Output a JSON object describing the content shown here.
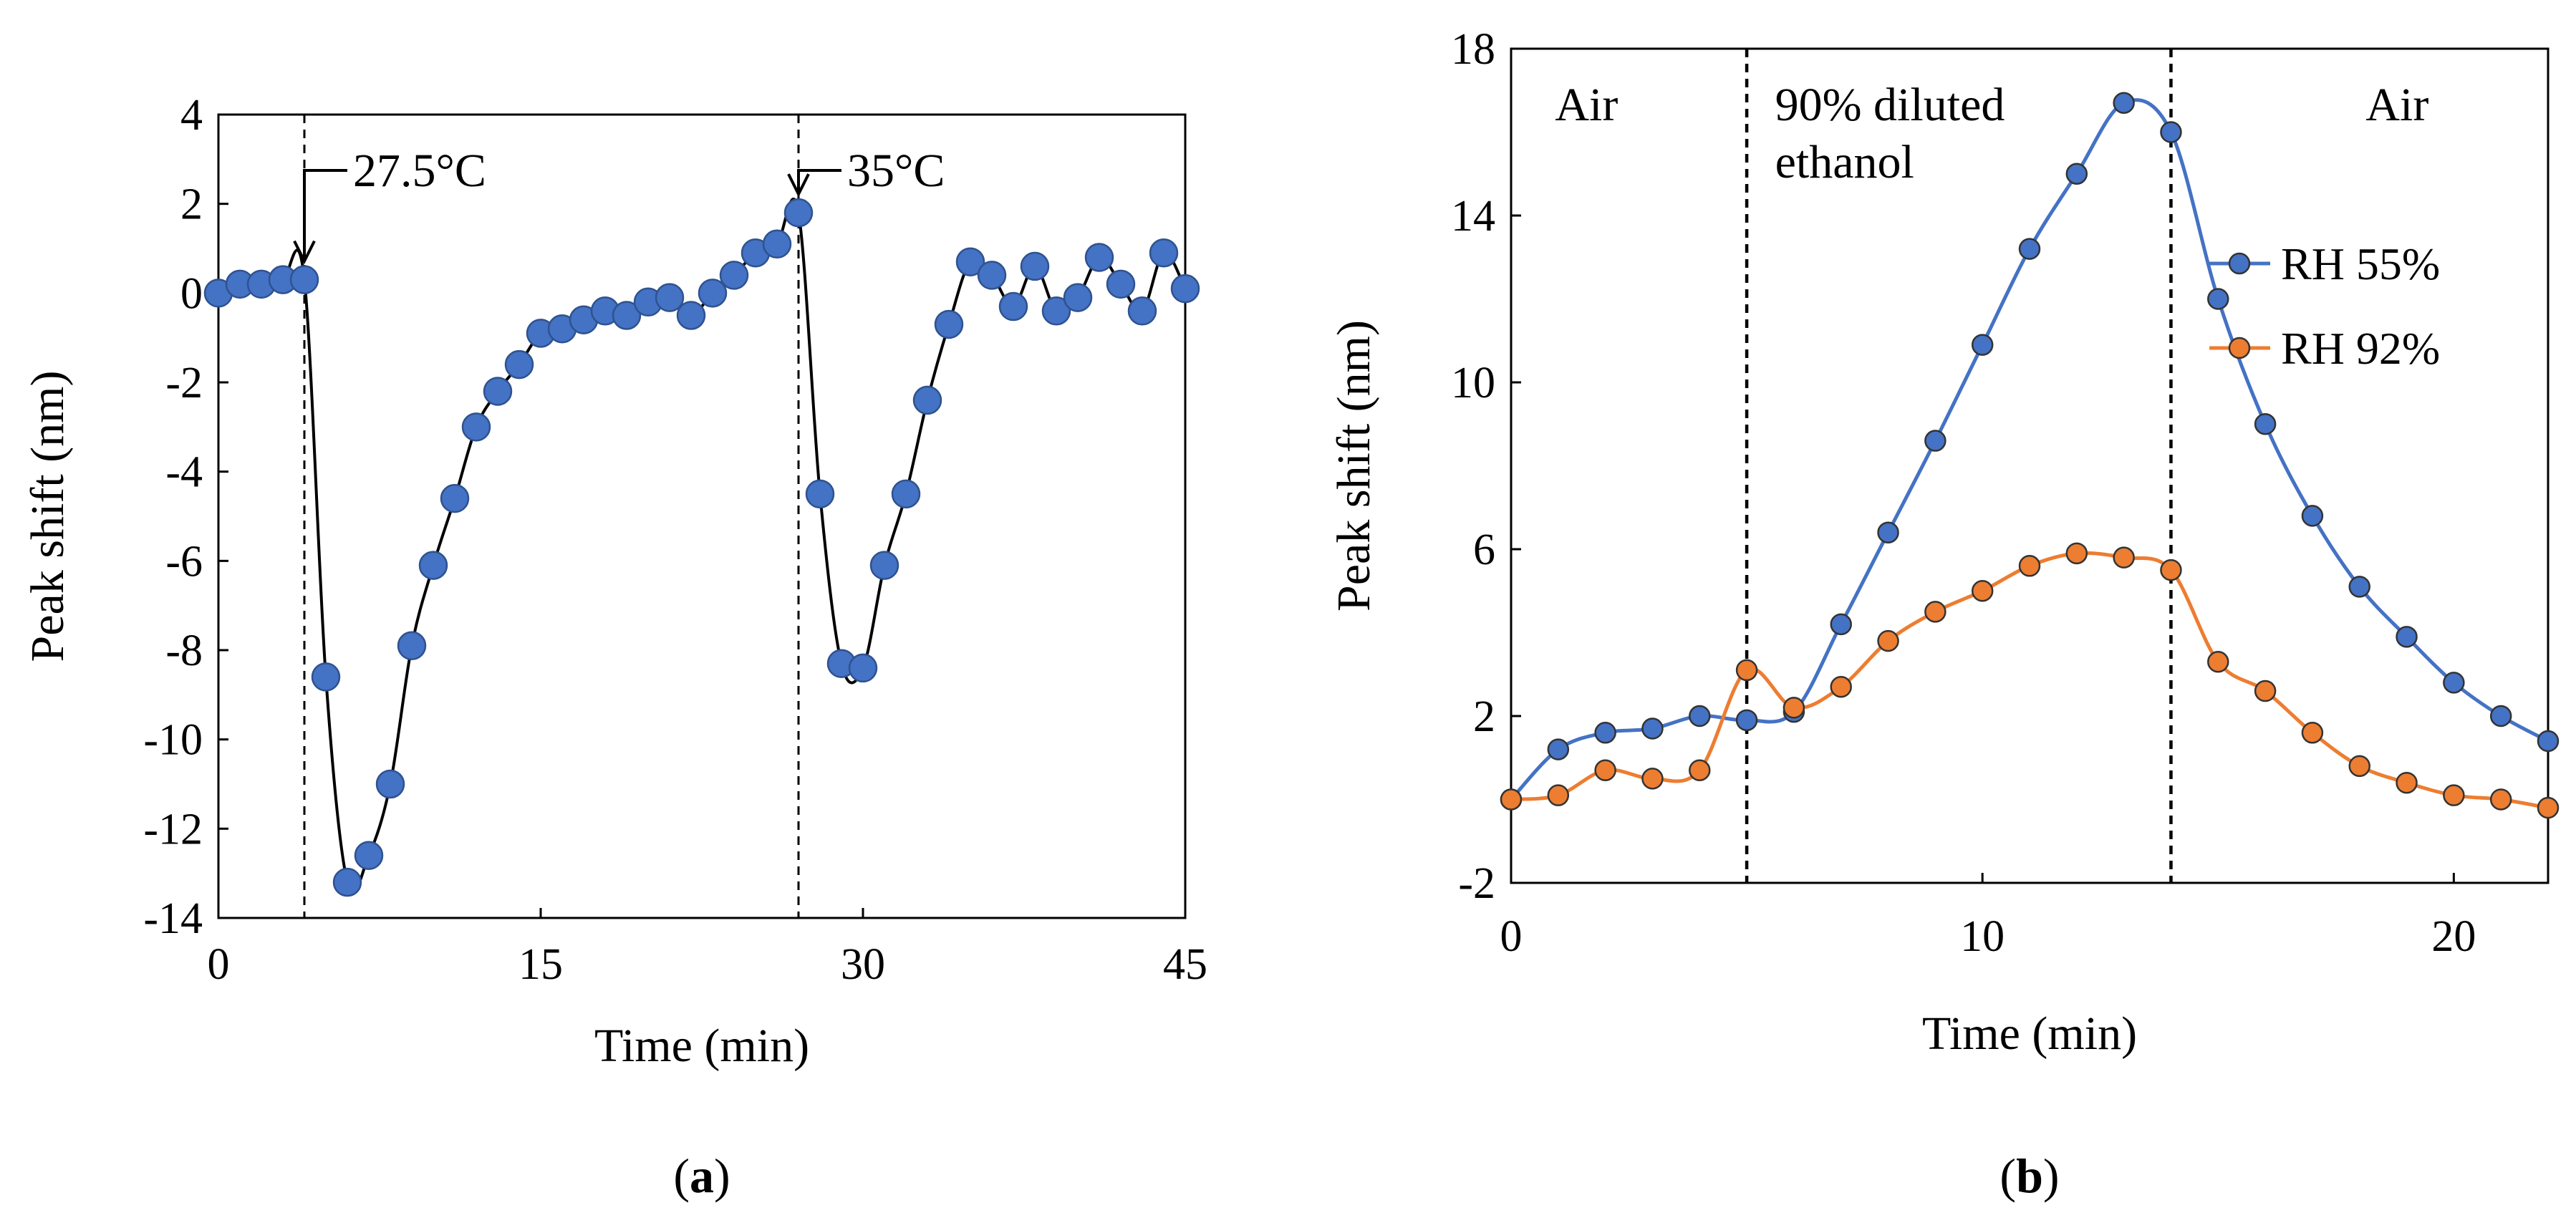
{
  "chart_data": [
    {
      "type": "scatter",
      "caption_letter": "a",
      "xlabel": "Time (min)",
      "ylabel": "Peak shift (nm)",
      "xlim": [
        0,
        45
      ],
      "ylim": [
        -14,
        4
      ],
      "xticks": [
        "0",
        "15",
        "30",
        "45"
      ],
      "yticks": [
        "-14",
        "-12",
        "-10",
        "-8",
        "-6",
        "-4",
        "-2",
        "0",
        "2",
        "4"
      ],
      "grid": false,
      "series": [
        {
          "color": "#4472c4",
          "x": [
            0,
            1,
            2,
            3,
            4,
            5,
            6,
            7,
            8,
            9,
            10,
            11,
            12,
            13,
            14,
            15,
            16,
            17,
            18,
            19,
            20,
            21,
            22,
            23,
            24,
            25,
            26,
            27,
            28,
            29,
            30,
            31,
            32,
            33,
            34,
            35,
            36,
            37,
            38,
            39,
            40,
            41,
            42,
            43,
            44,
            45
          ],
          "y": [
            0,
            0.2,
            0.2,
            0.3,
            0.3,
            -8.6,
            -13.2,
            -12.6,
            -11.0,
            -7.9,
            -6.1,
            -4.6,
            -3.0,
            -2.2,
            -1.6,
            -0.9,
            -0.8,
            -0.6,
            -0.4,
            -0.5,
            -0.2,
            -0.1,
            -0.5,
            0.0,
            0.4,
            0.9,
            1.1,
            1.8,
            -4.5,
            -8.3,
            -8.4,
            -6.1,
            -4.5,
            -2.4,
            -0.7,
            0.7,
            0.4,
            -0.3,
            0.6,
            -0.4,
            -0.1,
            0.8,
            0.2,
            -0.4,
            0.9,
            0.1
          ]
        }
      ],
      "vlines": [
        4,
        27
      ],
      "annotations": [
        {
          "text": "27.5°C",
          "x": 4,
          "y": 0.3
        },
        {
          "text": "35°C",
          "x": 27,
          "y": 1.8
        }
      ]
    },
    {
      "type": "line",
      "caption_letter": "b",
      "xlabel": "Time (min)",
      "ylabel": "Peak shift (nm)",
      "xlim": [
        0,
        22
      ],
      "ylim": [
        -2,
        18
      ],
      "xticks": [
        "0",
        "10",
        "20"
      ],
      "yticks": [
        "-2",
        "2",
        "6",
        "10",
        "14",
        "18"
      ],
      "grid": false,
      "legend_position": "right",
      "vlines": [
        5,
        14
      ],
      "regions": [
        {
          "lines": [
            "Air"
          ],
          "x": 1.6
        },
        {
          "lines": [
            "90% diluted",
            "ethanol"
          ],
          "x": 5.6
        },
        {
          "lines": [
            "Air"
          ],
          "x": 18.8
        }
      ],
      "series": [
        {
          "name": "RH 55%",
          "color": "#4472c4",
          "x": [
            0,
            1,
            2,
            3,
            4,
            5,
            6,
            7,
            8,
            9,
            10,
            11,
            12,
            13,
            14,
            15,
            16,
            17,
            18,
            19,
            20,
            21,
            22
          ],
          "y": [
            0,
            1.2,
            1.6,
            1.7,
            2.0,
            1.9,
            2.1,
            4.2,
            6.4,
            8.6,
            10.9,
            13.2,
            15.0,
            16.7,
            16.0,
            12.0,
            9.0,
            6.8,
            5.1,
            3.9,
            2.8,
            2.0,
            1.4
          ]
        },
        {
          "name": "RH 92%",
          "color": "#ed7d31",
          "x": [
            0,
            1,
            2,
            3,
            4,
            5,
            6,
            7,
            8,
            9,
            10,
            11,
            12,
            13,
            14,
            15,
            16,
            17,
            18,
            19,
            20,
            21,
            22
          ],
          "y": [
            0,
            0.1,
            0.7,
            0.5,
            0.7,
            3.1,
            2.2,
            2.7,
            3.8,
            4.5,
            5.0,
            5.6,
            5.9,
            5.8,
            5.5,
            3.3,
            2.6,
            1.6,
            0.8,
            0.4,
            0.1,
            0.0,
            -0.2
          ]
        }
      ]
    }
  ]
}
